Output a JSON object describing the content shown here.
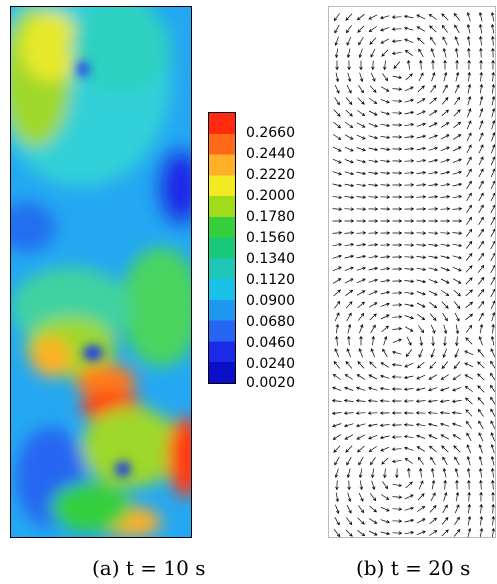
{
  "colorbar": {
    "labels": [
      "0.2660",
      "0.2440",
      "0.2220",
      "0.2000",
      "0.1780",
      "0.1560",
      "0.1340",
      "0.1120",
      "0.0900",
      "0.0680",
      "0.0460",
      "0.0240",
      "0.0020"
    ],
    "min": 0.002,
    "max": 0.288,
    "colors": [
      "#ff2a10",
      "#ff6a1a",
      "#ffb026",
      "#f2ea22",
      "#9edc1c",
      "#36cf3c",
      "#19c878",
      "#1ec7b8",
      "#19c2e6",
      "#1d97f0",
      "#2766f2",
      "#1b2ae8",
      "#0b10c8"
    ]
  },
  "captions": {
    "a": "(a) t = 10 s",
    "b": "(b) t = 20 s"
  }
}
